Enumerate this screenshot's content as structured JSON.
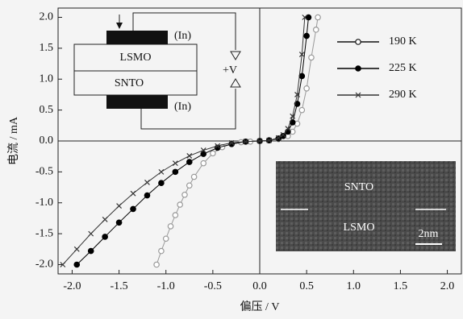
{
  "chart_data": {
    "type": "scatter",
    "x_label": "偏压 / V",
    "y_label": "电流 / mA",
    "xlim": [
      -2.15,
      2.15
    ],
    "ylim": [
      -2.15,
      2.15
    ],
    "xticks": [
      {
        "value": -2,
        "label": "-2.0"
      },
      -1.5,
      {
        "value": -1,
        "label": "-1.0"
      },
      -0.5,
      {
        "value": 0,
        "label": "0.0"
      },
      0.5,
      {
        "value": 1,
        "label": "1.0"
      },
      1.5,
      {
        "value": 2,
        "label": "2.0"
      }
    ],
    "yticks": [
      {
        "value": -2,
        "label": "-2.0"
      },
      -1.5,
      {
        "value": -1,
        "label": "-1.0"
      },
      -0.5,
      {
        "value": 0,
        "label": "0.0"
      },
      0.5,
      {
        "value": 1,
        "label": "1.0"
      },
      1.5,
      {
        "value": 2,
        "label": "2.0"
      }
    ],
    "series": [
      {
        "name": "190 K",
        "color": "#999999",
        "marker": "open-circle",
        "x": [
          -1.1,
          -1.05,
          -1.0,
          -0.95,
          -0.9,
          -0.85,
          -0.8,
          -0.75,
          -0.7,
          -0.6,
          -0.5,
          -0.4,
          -0.3,
          -0.2,
          -0.1,
          0,
          0.1,
          0.2,
          0.3,
          0.35,
          0.4,
          0.45,
          0.5,
          0.55,
          0.6,
          0.62
        ],
        "values": [
          -2.0,
          -1.78,
          -1.58,
          -1.38,
          -1.2,
          -1.03,
          -0.87,
          -0.72,
          -0.58,
          -0.36,
          -0.2,
          -0.1,
          -0.05,
          -0.02,
          -0.01,
          0,
          0.01,
          0.03,
          0.08,
          0.15,
          0.28,
          0.5,
          0.85,
          1.35,
          1.8,
          2.0
        ]
      },
      {
        "name": "225 K",
        "color": "#000000",
        "marker": "filled-circle",
        "x": [
          -1.95,
          -1.8,
          -1.65,
          -1.5,
          -1.35,
          -1.2,
          -1.05,
          -0.9,
          -0.75,
          -0.6,
          -0.45,
          -0.3,
          -0.15,
          0,
          0.1,
          0.2,
          0.25,
          0.3,
          0.35,
          0.4,
          0.45,
          0.5,
          0.52
        ],
        "values": [
          -2.0,
          -1.78,
          -1.55,
          -1.32,
          -1.1,
          -0.88,
          -0.68,
          -0.5,
          -0.34,
          -0.21,
          -0.11,
          -0.05,
          -0.01,
          0,
          0.01,
          0.04,
          0.08,
          0.15,
          0.3,
          0.6,
          1.05,
          1.7,
          2.0
        ]
      },
      {
        "name": "290 K",
        "color": "#333333",
        "marker": "cross",
        "x": [
          -2.1,
          -1.95,
          -1.8,
          -1.65,
          -1.5,
          -1.35,
          -1.2,
          -1.05,
          -0.9,
          -0.75,
          -0.6,
          -0.45,
          -0.3,
          -0.15,
          0,
          0.1,
          0.2,
          0.25,
          0.3,
          0.35,
          0.4,
          0.45,
          0.48
        ],
        "values": [
          -2.0,
          -1.75,
          -1.5,
          -1.27,
          -1.05,
          -0.85,
          -0.67,
          -0.5,
          -0.36,
          -0.24,
          -0.15,
          -0.08,
          -0.03,
          -0.01,
          0,
          0.01,
          0.05,
          0.1,
          0.2,
          0.4,
          0.75,
          1.4,
          2.0
        ]
      }
    ],
    "inset_schematic": {
      "top_layer": "LSMO",
      "bottom_layer": "SNTO",
      "top_contact": "(In)",
      "bottom_contact": "(In)",
      "bias": "+V"
    },
    "inset_image": {
      "upper_label": "SNTO",
      "lower_label": "LSMO",
      "scale_bar": "2nm"
    }
  }
}
